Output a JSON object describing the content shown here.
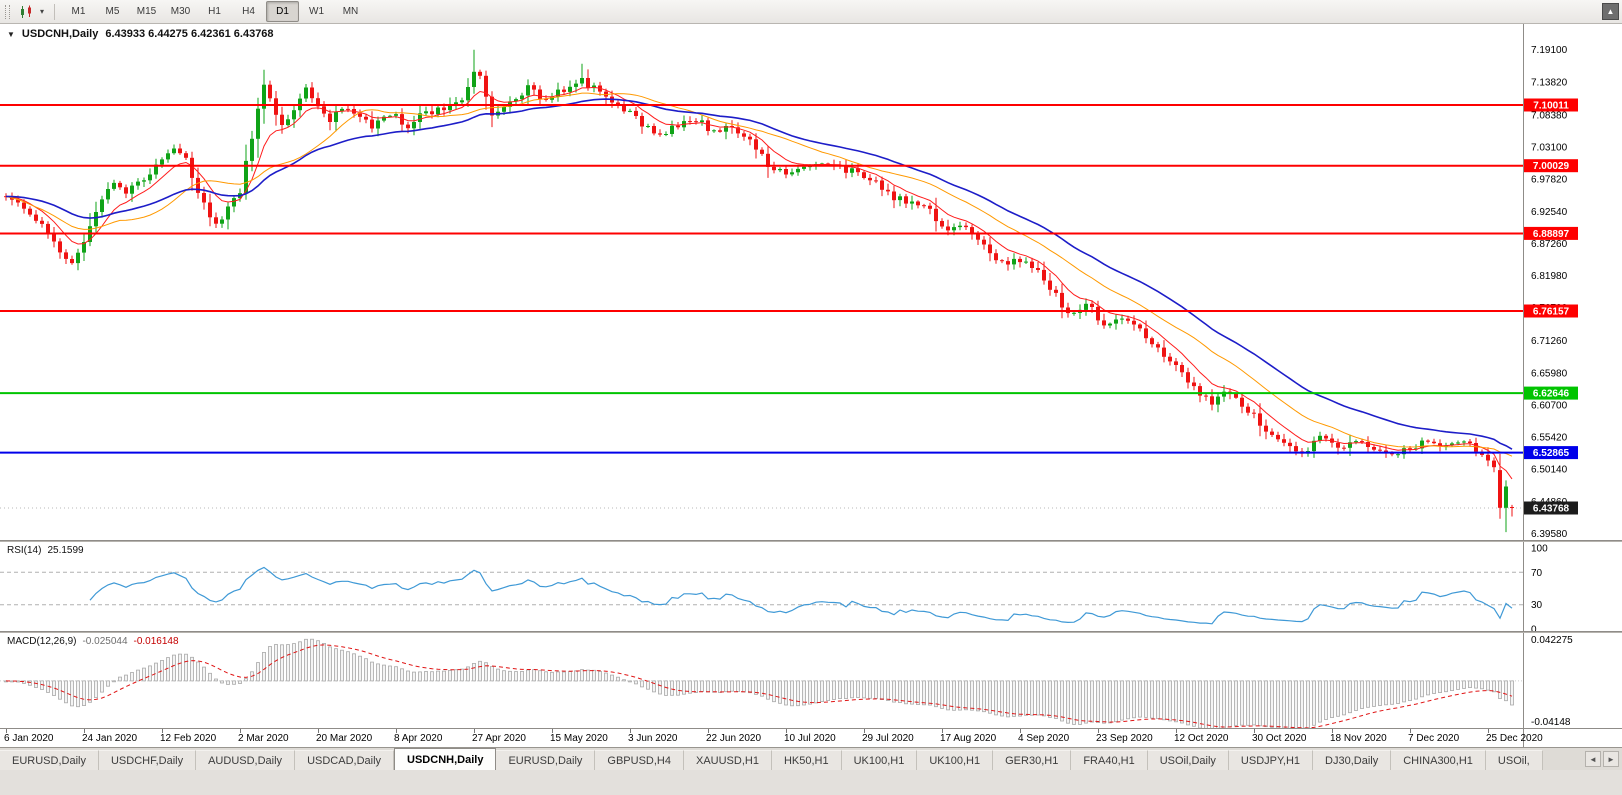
{
  "icons": {
    "caret_down": "▾",
    "collapse": "▼",
    "corner_button": "▲",
    "tab_scroll_left": "◄",
    "tab_scroll_right": "►"
  },
  "colors": {
    "up": "#0fa317",
    "down": "#ef1313",
    "ma_fast": "#ff1c1c",
    "ma_mid": "#ff9900",
    "ma_slow": "#1d1dc8",
    "rsi_line": "#3f99d6",
    "rsi_level": "#b0b0b0",
    "macd_hist_stroke": "#a8a8a8",
    "macd_hist_fill": "#f4f4f4",
    "macd_signal": "#e01616",
    "current_tag": "#1c1c1c",
    "axis_line": "#8f8c88"
  },
  "toolbar": {
    "timeframes": [
      "M1",
      "M5",
      "M15",
      "M30",
      "H1",
      "H4",
      "D1",
      "W1",
      "MN"
    ],
    "active_timeframe": "D1"
  },
  "chart": {
    "header": {
      "symbol": "USDCNH,Daily",
      "ohlc": "6.43933 6.44275 6.42361 6.43768"
    },
    "price_axis_labels": [
      "7.19100",
      "7.13820",
      "7.08380",
      "7.03100",
      "6.97820",
      "6.92540",
      "6.87260",
      "6.81980",
      "6.76700",
      "6.71260",
      "6.65980",
      "6.60700",
      "6.55420",
      "6.50140",
      "6.44860",
      "6.39580"
    ],
    "hlines": [
      {
        "label": "7.10011",
        "value": 7.10011,
        "color": "#fe0000"
      },
      {
        "label": "7.00029",
        "value": 7.00029,
        "color": "#fe0000"
      },
      {
        "label": "6.88897",
        "value": 6.88897,
        "color": "#fe0000"
      },
      {
        "label": "6.76157",
        "value": 6.76157,
        "color": "#fe0000"
      },
      {
        "label": "6.62646",
        "value": 6.62646,
        "color": "#00c400"
      },
      {
        "label": "6.52865",
        "value": 6.52865,
        "color": "#0000ea"
      }
    ],
    "current_price": {
      "label": "6.43768",
      "value": 6.43768
    }
  },
  "rsi": {
    "name": "RSI(14)",
    "value": "25.1599",
    "levels": [
      "100",
      "70",
      "30",
      "0"
    ],
    "level_values": [
      100,
      70,
      30,
      0
    ],
    "dashed_levels": [
      70,
      30
    ]
  },
  "macd": {
    "name": "MACD(12,26,9)",
    "value_main": "-0.025044",
    "value_signal": "-0.016148",
    "scale_top": "0.042275",
    "scale_bottom": "-0.04148"
  },
  "dates": {
    "labels": [
      "6 Jan 2020",
      "24 Jan 2020",
      "12 Feb 2020",
      "2 Mar 2020",
      "20 Mar 2020",
      "8 Apr 2020",
      "27 Apr 2020",
      "15 May 2020",
      "3 Jun 2020",
      "22 Jun 2020",
      "10 Jul 2020",
      "29 Jul 2020",
      "17 Aug 2020",
      "4 Sep 2020",
      "23 Sep 2020",
      "12 Oct 2020",
      "30 Oct 2020",
      "18 Nov 2020",
      "7 Dec 2020",
      "25 Dec 2020"
    ],
    "bar_indices": [
      0,
      13,
      26,
      39,
      52,
      65,
      78,
      91,
      104,
      117,
      130,
      143,
      156,
      169,
      182,
      195,
      208,
      221,
      234,
      247
    ]
  },
  "tabs": [
    {
      "label": "EURUSD,Daily",
      "active": false
    },
    {
      "label": "USDCHF,Daily",
      "active": false
    },
    {
      "label": "AUDUSD,Daily",
      "active": false
    },
    {
      "label": "USDCAD,Daily",
      "active": false
    },
    {
      "label": "USDCNH,Daily",
      "active": true
    },
    {
      "label": "EURUSD,Daily",
      "active": false
    },
    {
      "label": "GBPUSD,H4",
      "active": false
    },
    {
      "label": "XAUUSD,H1",
      "active": false
    },
    {
      "label": "HK50,H1",
      "active": false
    },
    {
      "label": "UK100,H1",
      "active": false
    },
    {
      "label": "UK100,H1",
      "active": false
    },
    {
      "label": "GER30,H1",
      "active": false
    },
    {
      "label": "FRA40,H1",
      "active": false
    },
    {
      "label": "USOil,Daily",
      "active": false
    },
    {
      "label": "USDJPY,H1",
      "active": false
    },
    {
      "label": "DJ30,Daily",
      "active": false
    },
    {
      "label": "CHINA300,H1",
      "active": false
    },
    {
      "label": "USOil,",
      "active": false
    }
  ],
  "chart_data": {
    "type": "candlestick",
    "symbol": "USDCNH",
    "timeframe": "Daily",
    "last_ohlc": {
      "open": 6.43933,
      "high": 6.44275,
      "low": 6.42361,
      "close": 6.43768
    },
    "y_axis": {
      "min": 6.38506,
      "max": 7.23326
    },
    "levels": {
      "resistance_red": [
        7.10011,
        7.00029,
        6.88897,
        6.76157
      ],
      "support_green": 6.62646,
      "support_blue": 6.52865,
      "current_price": 6.43768
    },
    "indicators": [
      {
        "name": "RSI",
        "period": 14,
        "last_value": 25.1599,
        "levels": [
          70,
          30
        ]
      },
      {
        "name": "MACD",
        "fast": 12,
        "slow": 26,
        "signal": 9,
        "last_main": -0.025044,
        "last_signal": -0.016148,
        "scale": [
          0.042275,
          -0.04148
        ]
      }
    ],
    "candle_count": 252,
    "price_anchors": [
      [
        0,
        6.955
      ],
      [
        3,
        6.93
      ],
      [
        6,
        6.9
      ],
      [
        9,
        6.862
      ],
      [
        11,
        6.838
      ],
      [
        13,
        6.874
      ],
      [
        16,
        6.944
      ],
      [
        18,
        6.972
      ],
      [
        20,
        6.952
      ],
      [
        22,
        6.972
      ],
      [
        25,
        7.0
      ],
      [
        28,
        7.035
      ],
      [
        30,
        7.01
      ],
      [
        33,
        6.935
      ],
      [
        35,
        6.9
      ],
      [
        37,
        6.935
      ],
      [
        39,
        6.96
      ],
      [
        40,
        7.005
      ],
      [
        42,
        7.09
      ],
      [
        43,
        7.132
      ],
      [
        44,
        7.11
      ],
      [
        46,
        7.068
      ],
      [
        48,
        7.095
      ],
      [
        50,
        7.128
      ],
      [
        52,
        7.098
      ],
      [
        54,
        7.072
      ],
      [
        56,
        7.098
      ],
      [
        58,
        7.085
      ],
      [
        61,
        7.063
      ],
      [
        64,
        7.085
      ],
      [
        67,
        7.068
      ],
      [
        70,
        7.088
      ],
      [
        73,
        7.098
      ],
      [
        76,
        7.112
      ],
      [
        78,
        7.155
      ],
      [
        79,
        7.148
      ],
      [
        81,
        7.085
      ],
      [
        84,
        7.108
      ],
      [
        87,
        7.128
      ],
      [
        90,
        7.11
      ],
      [
        93,
        7.126
      ],
      [
        96,
        7.142
      ],
      [
        98,
        7.126
      ],
      [
        100,
        7.108
      ],
      [
        103,
        7.094
      ],
      [
        106,
        7.068
      ],
      [
        109,
        7.054
      ],
      [
        112,
        7.064
      ],
      [
        115,
        7.074
      ],
      [
        118,
        7.058
      ],
      [
        121,
        7.066
      ],
      [
        124,
        7.044
      ],
      [
        127,
        7.004
      ],
      [
        130,
        6.988
      ],
      [
        133,
        6.994
      ],
      [
        136,
        7.006
      ],
      [
        139,
        6.997
      ],
      [
        142,
        6.988
      ],
      [
        145,
        6.971
      ],
      [
        148,
        6.949
      ],
      [
        151,
        6.939
      ],
      [
        154,
        6.924
      ],
      [
        157,
        6.888
      ],
      [
        160,
        6.904
      ],
      [
        163,
        6.868
      ],
      [
        166,
        6.838
      ],
      [
        169,
        6.848
      ],
      [
        172,
        6.824
      ],
      [
        175,
        6.788
      ],
      [
        177,
        6.758
      ],
      [
        180,
        6.774
      ],
      [
        183,
        6.738
      ],
      [
        186,
        6.754
      ],
      [
        189,
        6.727
      ],
      [
        192,
        6.699
      ],
      [
        195,
        6.671
      ],
      [
        198,
        6.635
      ],
      [
        201,
        6.611
      ],
      [
        204,
        6.629
      ],
      [
        207,
        6.599
      ],
      [
        210,
        6.563
      ],
      [
        213,
        6.539
      ],
      [
        216,
        6.527
      ],
      [
        219,
        6.551
      ],
      [
        222,
        6.539
      ],
      [
        225,
        6.551
      ],
      [
        228,
        6.537
      ],
      [
        231,
        6.529
      ],
      [
        234,
        6.539
      ],
      [
        237,
        6.547
      ],
      [
        240,
        6.535
      ],
      [
        243,
        6.547
      ],
      [
        246,
        6.527
      ],
      [
        248,
        6.499
      ],
      [
        249,
        6.457
      ],
      [
        251,
        6.438
      ]
    ],
    "overrides": {
      "43": {
        "h": 7.158
      },
      "78": {
        "h": 7.191
      },
      "96": {
        "h": 7.168
      },
      "249": {
        "o": 6.5,
        "c": 6.438,
        "l": 6.42
      },
      "250": {
        "o": 6.438,
        "c": 6.473,
        "h": 6.483,
        "l": 6.398
      },
      "251": {
        "o": 6.43933,
        "h": 6.44275,
        "l": 6.42361,
        "c": 6.43768
      }
    }
  }
}
